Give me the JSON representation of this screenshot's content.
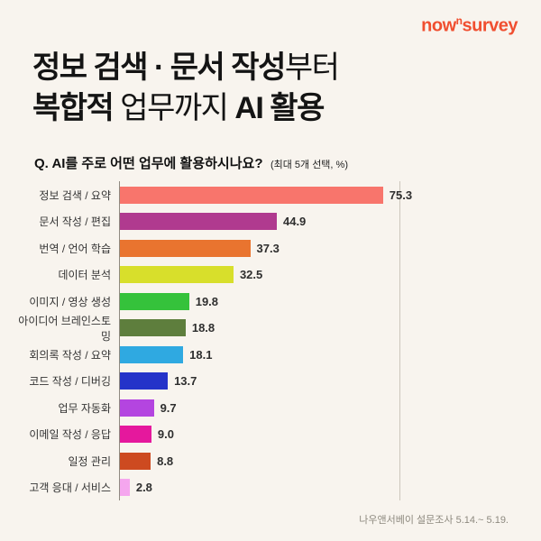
{
  "logo": {
    "now": "now",
    "sup": "n",
    "survey": "survey"
  },
  "title": {
    "l1_strong": "정보 검색 · 문서 작성",
    "l1_regular": "부터",
    "l2_strong1": "복합적",
    "l2_regular": " 업무까지 ",
    "l2_strong2": "AI 활용"
  },
  "question": {
    "text": "Q. AI를 주로 어떤 업무에 활용하시나요?",
    "note": "(최대 5개 선택, %)"
  },
  "footer": {
    "source": "나우앤서베이 설문조사 5.14.~ 5.19."
  },
  "chart_data": {
    "type": "bar",
    "orientation": "horizontal",
    "title": "정보 검색 · 문서 작성부터 복합적 업무까지 AI 활용",
    "question": "Q. AI를 주로 어떤 업무에 활용하시나요? (최대 5개 선택, %)",
    "unit": "%",
    "xlim": [
      0,
      80
    ],
    "grid": false,
    "categories": [
      "정보 검색 / 요약",
      "문서 작성 / 편집",
      "번역 / 언어 학습",
      "데이터 분석",
      "이미지 / 영상 생성",
      "아이디어 브레인스토밍",
      "회의록 작성 / 요약",
      "코드 작성 / 디버깅",
      "업무 자동화",
      "이메일 작성 / 응답",
      "일정 관리",
      "고객 응대 / 서비스"
    ],
    "values": [
      75.3,
      44.9,
      37.3,
      32.5,
      19.8,
      18.8,
      18.1,
      13.7,
      9.7,
      9.0,
      8.8,
      2.8
    ],
    "labels": [
      "75.3",
      "44.9",
      "37.3",
      "32.5",
      "19.8",
      "18.8",
      "18.1",
      "13.7",
      "9.7",
      "9.0",
      "8.8",
      "2.8"
    ],
    "colors": [
      "#f8756c",
      "#b03a8f",
      "#e9742f",
      "#d8df2b",
      "#35c23b",
      "#5e7e3d",
      "#2fa9e1",
      "#2433c9",
      "#b445e0",
      "#e5189d",
      "#cd4a20",
      "#f5a6ee"
    ],
    "source": "나우앤서베이 설문조사 5.14.~ 5.19."
  }
}
